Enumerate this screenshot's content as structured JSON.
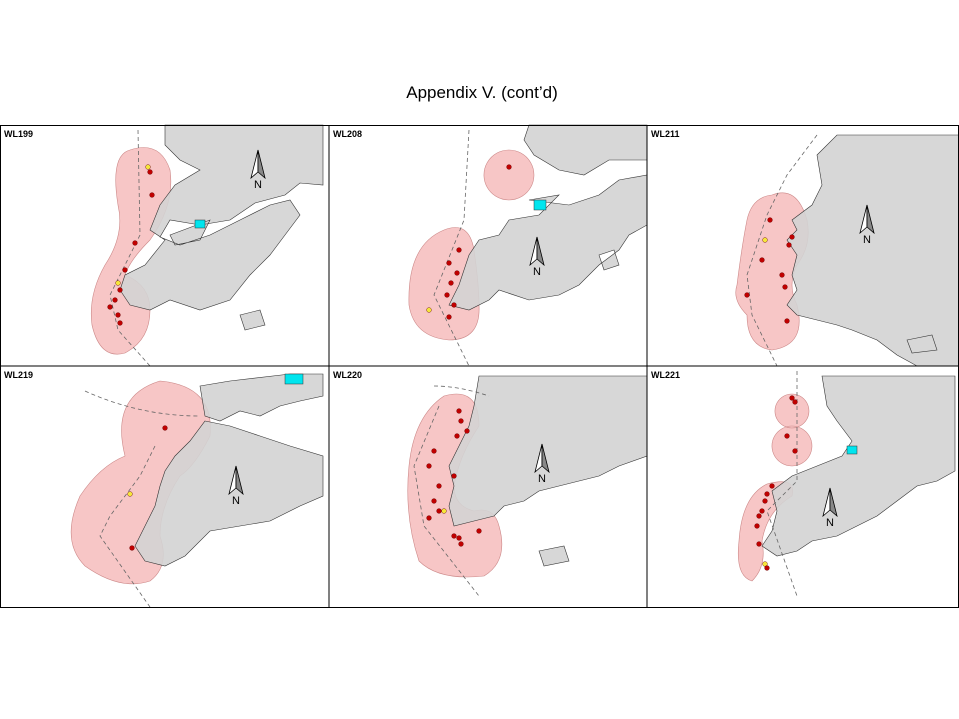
{
  "title": "Appendix V.  (cont’d)",
  "panels": [
    {
      "label": "WL199",
      "north": "N"
    },
    {
      "label": "WL208",
      "north": "N"
    },
    {
      "label": "WL211",
      "north": "N"
    },
    {
      "label": "WL219",
      "north": "N"
    },
    {
      "label": "WL220",
      "north": "N"
    },
    {
      "label": "WL221",
      "north": "N"
    }
  ]
}
